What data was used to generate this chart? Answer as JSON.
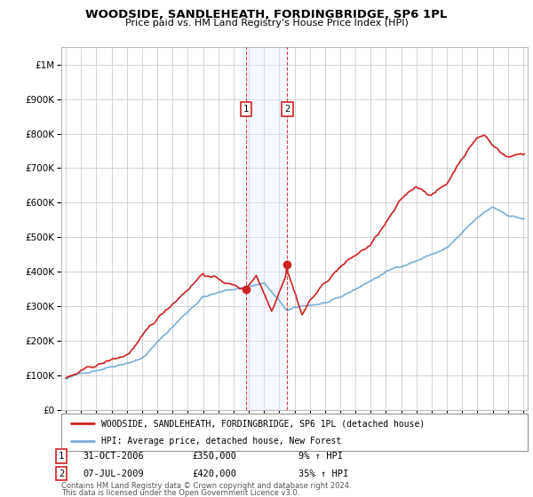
{
  "title": "WOODSIDE, SANDLEHEATH, FORDINGBRIDGE, SP6 1PL",
  "subtitle": "Price paid vs. HM Land Registry's House Price Index (HPI)",
  "legend_line1": "WOODSIDE, SANDLEHEATH, FORDINGBRIDGE, SP6 1PL (detached house)",
  "legend_line2": "HPI: Average price, detached house, New Forest",
  "transaction1_date": "31-OCT-2006",
  "transaction1_price": "£350,000",
  "transaction1_hpi": "9% ↑ HPI",
  "transaction1_year": 2006.83,
  "transaction1_value": 350000,
  "transaction2_date": "07-JUL-2009",
  "transaction2_price": "£420,000",
  "transaction2_hpi": "35% ↑ HPI",
  "transaction2_year": 2009.52,
  "transaction2_value": 420000,
  "footer1": "Contains HM Land Registry data © Crown copyright and database right 2024.",
  "footer2": "This data is licensed under the Open Government Licence v3.0.",
  "hpi_color": "#7aaed6",
  "price_color": "#cc2222",
  "shade_color": "#ddeeff",
  "background_color": "#ffffff",
  "grid_color": "#cccccc",
  "ylim": [
    0,
    1050000
  ],
  "xlim_start": 1994.7,
  "xlim_end": 2025.3
}
